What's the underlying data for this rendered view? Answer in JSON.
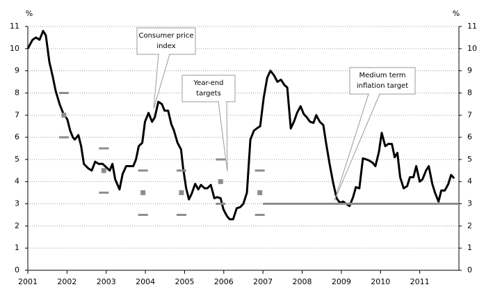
{
  "chart_data": {
    "type": "line",
    "y_label": "%",
    "y2_label": "%",
    "xlim": [
      2001,
      2012
    ],
    "xticks": [
      2001,
      2002,
      2003,
      2004,
      2005,
      2006,
      2007,
      2008,
      2009,
      2010,
      2011
    ],
    "ylim": [
      0,
      11
    ],
    "yticks": [
      0,
      1,
      2,
      3,
      4,
      5,
      6,
      7,
      8,
      9,
      10,
      11
    ],
    "y2lim": [
      0,
      11
    ],
    "y2ticks": [
      0,
      1,
      2,
      3,
      4,
      5,
      6,
      7,
      8,
      9,
      10,
      11
    ],
    "grid": true,
    "series": [
      {
        "name": "Consumer price index",
        "type": "line",
        "color": "#000000",
        "x": [
          2001.0,
          2001.12,
          2001.21,
          2001.3,
          2001.39,
          2001.46,
          2001.55,
          2001.64,
          2001.71,
          2001.81,
          2001.9,
          2002.01,
          2002.08,
          2002.15,
          2002.2,
          2002.29,
          2002.36,
          2002.43,
          2002.54,
          2002.63,
          2002.72,
          2002.81,
          2002.91,
          2003.0,
          2003.09,
          2003.16,
          2003.23,
          2003.34,
          2003.42,
          2003.51,
          2003.6,
          2003.69,
          2003.76,
          2003.83,
          2003.92,
          2003.99,
          2004.08,
          2004.17,
          2004.24,
          2004.33,
          2004.42,
          2004.49,
          2004.58,
          2004.66,
          2004.73,
          2004.82,
          2004.91,
          2004.96,
          2005.04,
          2005.11,
          2005.18,
          2005.27,
          2005.35,
          2005.42,
          2005.51,
          2005.58,
          2005.67,
          2005.76,
          2005.83,
          2005.92,
          2005.99,
          2006.08,
          2006.15,
          2006.24,
          2006.33,
          2006.42,
          2006.5,
          2006.59,
          2006.68,
          2006.77,
          2006.84,
          2006.93,
          2007.02,
          2007.11,
          2007.19,
          2007.28,
          2007.37,
          2007.46,
          2007.55,
          2007.62,
          2007.71,
          2007.8,
          2007.87,
          2007.96,
          2008.04,
          2008.12,
          2008.2,
          2008.29,
          2008.36,
          2008.45,
          2008.54,
          2008.61,
          2008.7,
          2008.79,
          2008.88,
          2008.96,
          2009.05,
          2009.12,
          2009.21,
          2009.3,
          2009.37,
          2009.46,
          2009.55,
          2009.64,
          2009.71,
          2009.8,
          2009.87,
          2009.96,
          2010.03,
          2010.12,
          2010.2,
          2010.29,
          2010.36,
          2010.43,
          2010.5,
          2010.59,
          2010.68,
          2010.75,
          2010.84,
          2010.91,
          2011.0,
          2011.07,
          2011.16,
          2011.23,
          2011.32,
          2011.39,
          2011.48,
          2011.55,
          2011.64,
          2011.73,
          2011.8,
          2011.88
        ],
        "values": [
          10.0,
          10.4,
          10.5,
          10.4,
          10.8,
          10.6,
          9.4,
          8.7,
          8.1,
          7.5,
          7.1,
          6.8,
          6.3,
          6.0,
          5.9,
          6.1,
          5.6,
          4.8,
          4.6,
          4.5,
          4.9,
          4.8,
          4.8,
          4.65,
          4.5,
          4.8,
          4.1,
          3.65,
          4.35,
          4.7,
          4.7,
          4.7,
          5.0,
          5.6,
          5.75,
          6.7,
          7.1,
          6.7,
          6.9,
          7.6,
          7.5,
          7.2,
          7.2,
          6.6,
          6.3,
          5.75,
          5.45,
          4.65,
          3.7,
          3.2,
          3.45,
          3.9,
          3.65,
          3.85,
          3.7,
          3.7,
          3.85,
          3.25,
          3.3,
          3.25,
          2.75,
          2.45,
          2.3,
          2.3,
          2.8,
          2.85,
          3.0,
          3.5,
          5.9,
          6.3,
          6.4,
          6.5,
          7.8,
          8.7,
          9.0,
          8.8,
          8.5,
          8.6,
          8.35,
          8.25,
          6.4,
          6.75,
          7.1,
          7.4,
          7.05,
          6.9,
          6.7,
          6.65,
          7.0,
          6.7,
          6.55,
          5.75,
          4.8,
          3.95,
          3.25,
          3.05,
          3.1,
          3.0,
          2.9,
          3.3,
          3.75,
          3.7,
          5.05,
          5.0,
          4.95,
          4.85,
          4.7,
          5.35,
          6.2,
          5.6,
          5.7,
          5.7,
          5.1,
          5.3,
          4.2,
          3.7,
          3.8,
          4.2,
          4.2,
          4.7,
          4.0,
          4.1,
          4.5,
          4.7,
          3.9,
          3.5,
          3.1,
          3.6,
          3.6,
          3.9,
          4.3,
          4.15
        ]
      },
      {
        "name": "Year-end targets",
        "type": "target",
        "color": "#8c8c8c",
        "x": [
          2001.92,
          2002.94,
          2003.94,
          2004.92,
          2005.92,
          2006.92
        ],
        "values": [
          7,
          4.5,
          3.5,
          3.5,
          4,
          3.5
        ],
        "lower": [
          6,
          3.5,
          2.5,
          2.5,
          3,
          2.5
        ],
        "upper": [
          8,
          5.5,
          4.5,
          4.5,
          5,
          4.5
        ]
      },
      {
        "name": "Medium term inflation target",
        "type": "hline",
        "color": "#8c8c8c",
        "x": [
          2007,
          2012
        ],
        "values": [
          3,
          3
        ]
      }
    ],
    "annotations": [
      {
        "text": [
          "Consumer price",
          "index"
        ]
      },
      {
        "text": [
          "Year-end",
          "targets"
        ]
      },
      {
        "text": [
          "Medium term",
          "inflation target"
        ]
      }
    ]
  }
}
